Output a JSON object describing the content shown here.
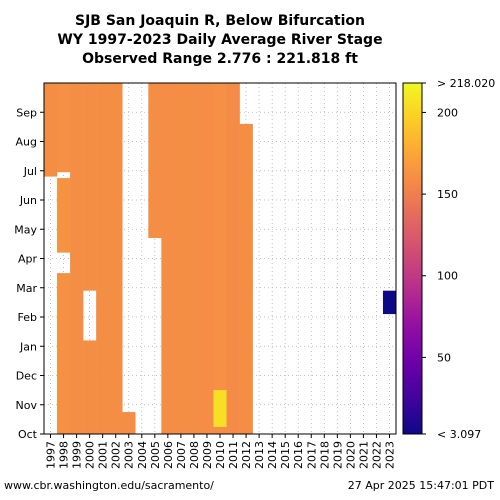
{
  "title": {
    "line1": "SJB San Joaquin R, Below Bifurcation",
    "line2": "WY 1997-2023 Daily Average River Stage",
    "line3": "Observed Range 2.776 : 221.818 ft"
  },
  "footer": {
    "source": "www.cbr.washington.edu/sacramento/",
    "timestamp": "27 Apr 2025 15:47:01 PDT"
  },
  "chart_data": {
    "type": "heatmap",
    "x_label_ticks": [
      "1997",
      "1998",
      "1999",
      "2000",
      "2001",
      "2002",
      "2003",
      "2004",
      "2005",
      "2006",
      "2007",
      "2008",
      "2009",
      "2010",
      "2011",
      "2012",
      "2013",
      "2014",
      "2015",
      "2016",
      "2017",
      "2018",
      "2019",
      "2020",
      "2021",
      "2022",
      "2023"
    ],
    "y_label_ticks": [
      "Oct",
      "Nov",
      "Dec",
      "Jan",
      "Feb",
      "Mar",
      "Apr",
      "May",
      "Jun",
      "Jul",
      "Aug",
      "Sep"
    ],
    "colorbar": {
      "min": 3.097,
      "max": 218.02,
      "min_label": "< 3.097",
      "max_label": "> 218.020",
      "ticks": [
        {
          "value": 50,
          "label": "50"
        },
        {
          "value": 100,
          "label": "100"
        },
        {
          "value": 150,
          "label": "150"
        },
        {
          "value": 200,
          "label": "200"
        }
      ],
      "colormap": "plasma"
    },
    "columns": [
      {
        "year": "1997",
        "segments": [
          {
            "from_month": 8.8,
            "to_month": 12,
            "value": 160
          }
        ]
      },
      {
        "year": "1998",
        "segments": [
          {
            "from_month": 0,
            "to_month": 5.5,
            "value": 162
          },
          {
            "from_month": 6.2,
            "to_month": 8.75,
            "value": 163
          },
          {
            "from_month": 8.95,
            "to_month": 12,
            "value": 161
          }
        ]
      },
      {
        "year": "1999",
        "segments": [
          {
            "from_month": 0,
            "to_month": 12,
            "value": 160
          }
        ]
      },
      {
        "year": "2000",
        "segments": [
          {
            "from_month": 0,
            "to_month": 3.2,
            "value": 160
          },
          {
            "from_month": 4.9,
            "to_month": 12,
            "value": 160
          }
        ]
      },
      {
        "year": "2001",
        "segments": [
          {
            "from_month": 0,
            "to_month": 12,
            "value": 160
          }
        ]
      },
      {
        "year": "2002",
        "segments": [
          {
            "from_month": 0,
            "to_month": 12,
            "value": 160
          }
        ]
      },
      {
        "year": "2003",
        "segments": [
          {
            "from_month": 0,
            "to_month": 0.75,
            "value": 160
          }
        ]
      },
      {
        "year": "2005",
        "segments": [
          {
            "from_month": 6.7,
            "to_month": 12,
            "value": 160
          }
        ]
      },
      {
        "year": "2006",
        "segments": [
          {
            "from_month": 0,
            "to_month": 12,
            "value": 159
          }
        ]
      },
      {
        "year": "2007",
        "segments": [
          {
            "from_month": 0,
            "to_month": 12,
            "value": 160
          }
        ]
      },
      {
        "year": "2008",
        "segments": [
          {
            "from_month": 0,
            "to_month": 12,
            "value": 160
          }
        ]
      },
      {
        "year": "2009",
        "segments": [
          {
            "from_month": 0,
            "to_month": 12,
            "value": 159
          }
        ]
      },
      {
        "year": "2010",
        "segments": [
          {
            "from_month": 0,
            "to_month": 0.25,
            "value": 160
          },
          {
            "from_month": 0.25,
            "to_month": 1.5,
            "value": 205
          },
          {
            "from_month": 1.5,
            "to_month": 12,
            "value": 161
          }
        ]
      },
      {
        "year": "2011",
        "segments": [
          {
            "from_month": 0,
            "to_month": 12,
            "value": 158
          }
        ]
      },
      {
        "year": "2012",
        "segments": [
          {
            "from_month": 0,
            "to_month": 10.6,
            "value": 160
          }
        ]
      },
      {
        "year": "2023",
        "segments": [
          {
            "from_month": 4.1,
            "to_month": 4.9,
            "value": 3.1
          }
        ]
      }
    ]
  }
}
